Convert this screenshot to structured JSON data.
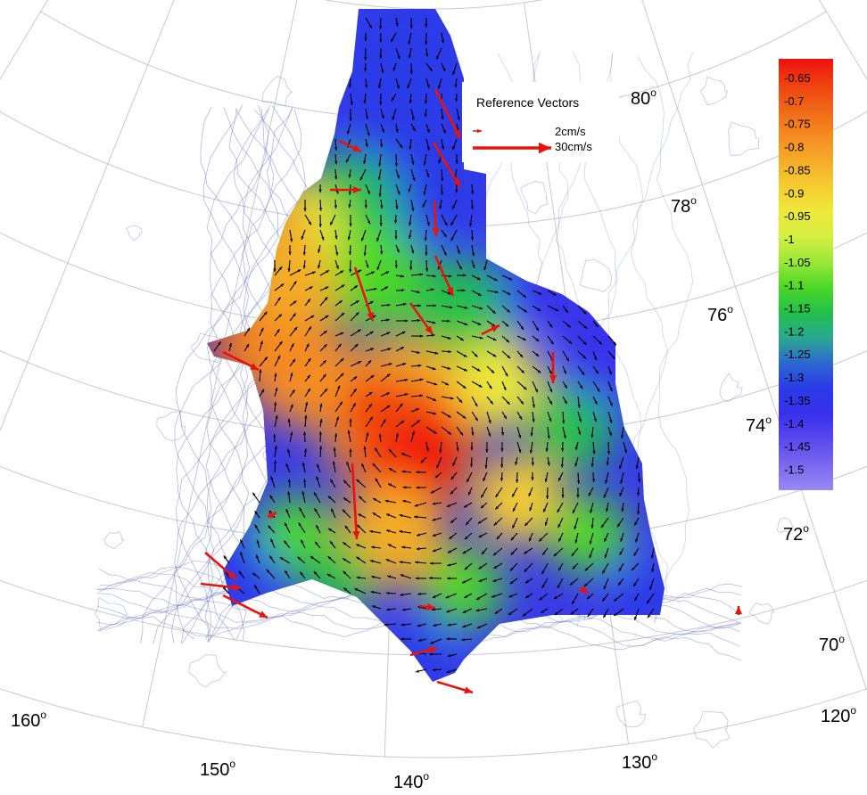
{
  "map": {
    "latitude_labels": [
      {
        "value": "80",
        "unit": "o"
      },
      {
        "value": "78",
        "unit": "o"
      },
      {
        "value": "76",
        "unit": "o"
      },
      {
        "value": "74",
        "unit": "o"
      },
      {
        "value": "72",
        "unit": "o"
      },
      {
        "value": "70",
        "unit": "o"
      }
    ],
    "longitude_labels": [
      {
        "value": "160",
        "unit": "o"
      },
      {
        "value": "150",
        "unit": "o"
      },
      {
        "value": "140",
        "unit": "o"
      },
      {
        "value": "130",
        "unit": "o"
      },
      {
        "value": "120",
        "unit": "o"
      }
    ]
  },
  "legend": {
    "title": "Reference Vectors",
    "items": [
      {
        "label": "2cm/s",
        "speed": 2
      },
      {
        "label": "30cm/s",
        "speed": 30
      }
    ],
    "arrow_color": "#e8140c"
  },
  "colorbar": {
    "ticks": [
      "-0.65",
      "-0.7",
      "-0.75",
      "-0.8",
      "-0.85",
      "-0.9",
      "-0.95",
      "-1",
      "-1.05",
      "-1.1",
      "-1.15",
      "-1.2",
      "-1.25",
      "-1.3",
      "-1.35",
      "-1.4",
      "-1.45",
      "-1.5"
    ],
    "colors": [
      "#f01010",
      "#f04010",
      "#f06818",
      "#f58a20",
      "#f5aa28",
      "#f5cc30",
      "#eee83a",
      "#d4f040",
      "#9ae838",
      "#4cd828",
      "#22c048",
      "#2aa890",
      "#2c68d0",
      "#2a3ae8",
      "#3830ec",
      "#5a48ee",
      "#7a68f0",
      "#9a88f2"
    ]
  },
  "contour_color": "#7080c8",
  "vector_color": "#000000"
}
